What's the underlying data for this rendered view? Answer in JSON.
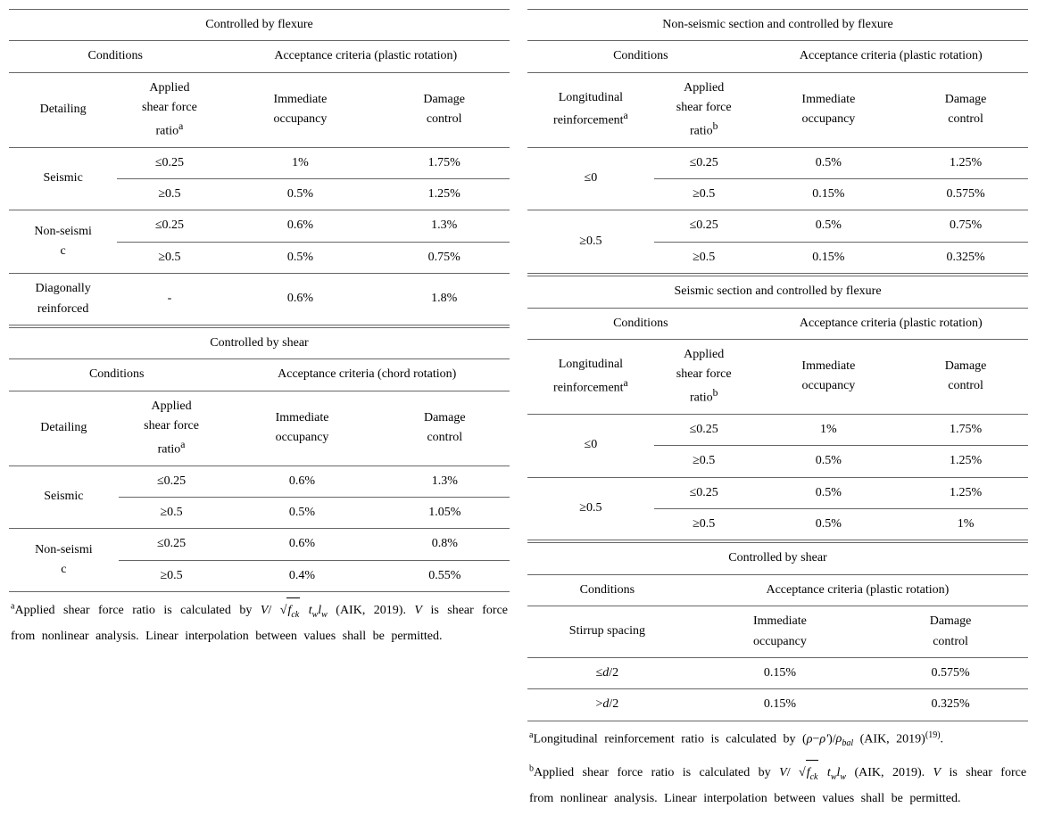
{
  "left": {
    "table1": {
      "header": "Controlled by flexure",
      "conditions_label": "Conditions",
      "criteria_label": "Acceptance criteria (plastic rotation)",
      "col1": "Detailing",
      "col2_line1": "Applied",
      "col2_line2": "shear force",
      "col2_line3": "ratio",
      "col2_sup": "a",
      "col3_line1": "Immediate",
      "col3_line2": "occupancy",
      "col4_line1": "Damage",
      "col4_line2": "control",
      "rows": [
        {
          "detailing": "Seismic",
          "ratio": "≤0.25",
          "io": "1%",
          "dc": "1.75%"
        },
        {
          "detailing": "",
          "ratio": "≥0.5",
          "io": "0.5%",
          "dc": "1.25%"
        },
        {
          "detailing_line1": "Non-seismi",
          "detailing_line2": "c",
          "ratio": "≤0.25",
          "io": "0.6%",
          "dc": "1.3%"
        },
        {
          "detailing": "",
          "ratio": "≥0.5",
          "io": "0.5%",
          "dc": "0.75%"
        },
        {
          "detailing_line1": "Diagonally",
          "detailing_line2": "reinforced",
          "ratio": "-",
          "io": "0.6%",
          "dc": "1.8%"
        }
      ]
    },
    "table2": {
      "header": "Controlled by shear",
      "conditions_label": "Conditions",
      "criteria_label": "Acceptance criteria (chord rotation)",
      "col1": "Detailing",
      "col2_line1": "Applied",
      "col2_line2": "shear force",
      "col2_line3": "ratio",
      "col2_sup": "a",
      "col3_line1": "Immediate",
      "col3_line2": "occupancy",
      "col4_line1": "Damage",
      "col4_line2": "control",
      "rows": [
        {
          "detailing": "Seismic",
          "ratio": "≤0.25",
          "io": "0.6%",
          "dc": "1.3%"
        },
        {
          "detailing": "",
          "ratio": "≥0.5",
          "io": "0.5%",
          "dc": "1.05%"
        },
        {
          "detailing_line1": "Non-seismi",
          "detailing_line2": "c",
          "ratio": "≤0.25",
          "io": "0.6%",
          "dc": "0.8%"
        },
        {
          "detailing": "",
          "ratio": "≥0.5",
          "io": "0.4%",
          "dc": "0.55%"
        }
      ]
    },
    "footnote_a_prefix": "a",
    "footnote_a_text1": "Applied shear force ratio is calculated by ",
    "footnote_a_formula": "V/√(f_ck) t_w l_w",
    "footnote_a_text2": " (AIK, 2019). ",
    "footnote_a_text3": "V",
    "footnote_a_text4": " is shear force from nonlinear analysis. Linear interpolation between values shall be permitted."
  },
  "right": {
    "table1": {
      "header": "Non-seismic section and controlled by flexure",
      "conditions_label": "Conditions",
      "criteria_label": "Acceptance criteria (plastic rotation)",
      "col1_line1": "Longitudinal",
      "col1_line2": "reinforcement",
      "col1_sup": "a",
      "col2_line1": "Applied",
      "col2_line2": "shear force",
      "col2_line3": "ratio",
      "col2_sup": "b",
      "col3_line1": "Immediate",
      "col3_line2": "occupancy",
      "col4_line1": "Damage",
      "col4_line2": "control",
      "rows": [
        {
          "reinf": "≤0",
          "ratio": "≤0.25",
          "io": "0.5%",
          "dc": "1.25%"
        },
        {
          "reinf": "",
          "ratio": "≥0.5",
          "io": "0.15%",
          "dc": "0.575%"
        },
        {
          "reinf": "≥0.5",
          "ratio": "≤0.25",
          "io": "0.5%",
          "dc": "0.75%"
        },
        {
          "reinf": "",
          "ratio": "≥0.5",
          "io": "0.15%",
          "dc": "0.325%"
        }
      ]
    },
    "table2": {
      "header": "Seismic section and controlled by flexure",
      "conditions_label": "Conditions",
      "criteria_label": "Acceptance criteria (plastic rotation)",
      "col1_line1": "Longitudinal",
      "col1_line2": "reinforcement",
      "col1_sup": "a",
      "col2_line1": "Applied",
      "col2_line2": "shear force",
      "col2_line3": "ratio",
      "col2_sup": "b",
      "col3_line1": "Immediate",
      "col3_line2": "occupancy",
      "col4_line1": "Damage",
      "col4_line2": "control",
      "rows": [
        {
          "reinf": "≤0",
          "ratio": "≤0.25",
          "io": "1%",
          "dc": "1.75%"
        },
        {
          "reinf": "",
          "ratio": "≥0.5",
          "io": "0.5%",
          "dc": "1.25%"
        },
        {
          "reinf": "≥0.5",
          "ratio": "≤0.25",
          "io": "0.5%",
          "dc": "1.25%"
        },
        {
          "reinf": "",
          "ratio": "≥0.5",
          "io": "0.5%",
          "dc": "1%"
        }
      ]
    },
    "table3": {
      "header": "Controlled by shear",
      "conditions_label": "Conditions",
      "criteria_label": "Acceptance criteria (plastic rotation)",
      "col1": "Stirrup spacing",
      "col3_line1": "Immediate",
      "col3_line2": "occupancy",
      "col4_line1": "Damage",
      "col4_line2": "control",
      "rows": [
        {
          "spacing_prefix": "≤",
          "spacing_var": "d",
          "spacing_suffix": "/2",
          "io": "0.15%",
          "dc": "0.575%"
        },
        {
          "spacing_prefix": ">",
          "spacing_var": "d",
          "spacing_suffix": "/2",
          "io": "0.15%",
          "dc": "0.325%"
        }
      ]
    },
    "footnote_a_prefix": "a",
    "footnote_a_text1": "Longitudinal reinforcement ratio is calculated by ",
    "footnote_a_formula": "(ρ−ρ')/ρ_bal",
    "footnote_a_text2": " (AIK, 2019)",
    "footnote_a_ref": "(19)",
    "footnote_a_text3": ".",
    "footnote_b_prefix": "b",
    "footnote_b_text1": "Applied shear force ratio is calculated by ",
    "footnote_b_formula": "V/√(f_ck) t_w l_w",
    "footnote_b_text2": " (AIK, 2019). ",
    "footnote_b_text3": "V",
    "footnote_b_text4": " is shear force from nonlinear analysis. Linear interpolation between values shall be permitted."
  }
}
